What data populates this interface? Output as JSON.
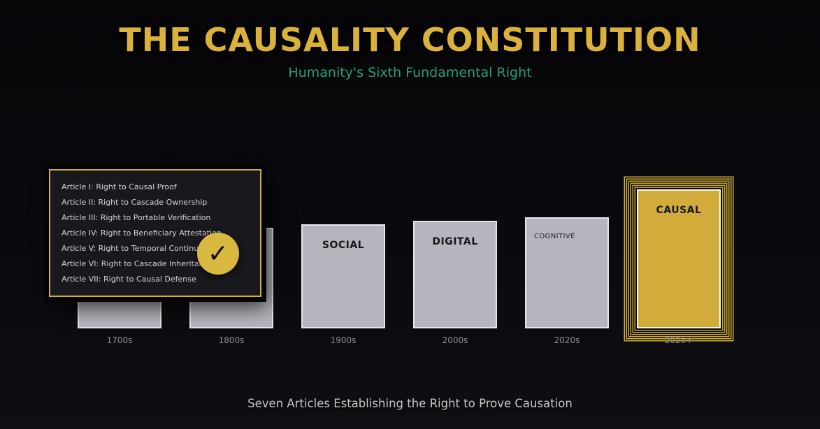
{
  "header": {
    "title": "THE CAUSALITY CONSTITUTION",
    "subtitle": "Humanity's Sixth Fundamental Right"
  },
  "articles_panel": {
    "items": [
      {
        "label": "Article I: Right to Causal Proof"
      },
      {
        "label": "Article II: Right to Cascade Ownership"
      },
      {
        "label": "Article III: Right to Portable Verification"
      },
      {
        "label": "Article IV: Right to Beneficiary Attestation"
      },
      {
        "label": "Article V: Right to Temporal Continuity"
      },
      {
        "label": "Article VI: Right to Cascade Inheritance"
      },
      {
        "label": "Article VII: Right to Causal Defense"
      }
    ],
    "badge_check": "✓"
  },
  "timeline": {
    "eras": [
      {
        "label": "",
        "decade": "1700s"
      },
      {
        "label": "",
        "decade": "1800s"
      },
      {
        "label": "SOCIAL",
        "decade": "1900s"
      },
      {
        "label": "DIGITAL",
        "decade": "2000s"
      },
      {
        "label": "COGNITIVE",
        "decade": "2020s"
      },
      {
        "label": "CAUSAL",
        "decade": "2025+"
      }
    ]
  },
  "footer": {
    "caption": "Seven Articles Establishing the Right to Prove Causation"
  },
  "chart_data": {
    "type": "bar",
    "title": "THE CAUSALITY CONSTITUTION",
    "subtitle": "Humanity's Sixth Fundamental Right",
    "categories": [
      "1700s",
      "1800s",
      "1900s",
      "2000s",
      "2020s",
      "2025+"
    ],
    "bar_labels": [
      "",
      "",
      "SOCIAL",
      "DIGITAL",
      "COGNITIVE",
      "CAUSAL"
    ],
    "values": [
      139,
      144,
      149,
      154,
      159,
      199
    ],
    "value_unit": "relative pillar height (px)",
    "highlight_category": "2025+",
    "annotation": "Seven Articles Establishing the Right to Prove Causation"
  },
  "colors": {
    "gold": "#d4af37",
    "title_gold": "#d9b13b",
    "teal_green": "#27a179",
    "pillar_grey": "#b5b5bd",
    "causal_fill": "#d2ac3a",
    "panel_bg": "#18181d",
    "background": "#0a0a0e"
  }
}
